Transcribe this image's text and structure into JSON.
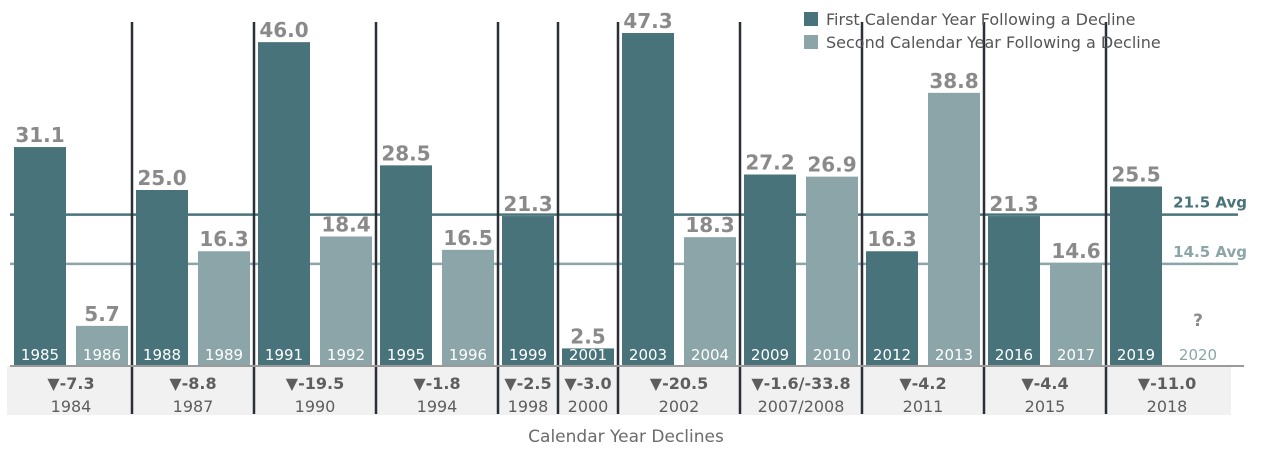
{
  "chart_data": {
    "type": "bar",
    "xlabel": "Calendar Year Declines",
    "ylim": [
      0,
      50
    ],
    "series": [
      {
        "name": "First Calendar Year Following a Decline",
        "color": "#48737a"
      },
      {
        "name": "Second Calendar Year Following a Decline",
        "color": "#8ba5a8"
      }
    ],
    "groups": [
      {
        "decline_year": "1984",
        "decline_value": "▼-7.3",
        "bars": [
          {
            "label": "1985",
            "value": 31.1,
            "series": 0,
            "value_text": "31.1"
          },
          {
            "label": "1986",
            "value": 5.7,
            "series": 1,
            "value_text": "5.7"
          }
        ]
      },
      {
        "decline_year": "1987",
        "decline_value": "▼-8.8",
        "bars": [
          {
            "label": "1988",
            "value": 25.0,
            "series": 0,
            "value_text": "25.0"
          },
          {
            "label": "1989",
            "value": 16.3,
            "series": 1,
            "value_text": "16.3"
          }
        ]
      },
      {
        "decline_year": "1990",
        "decline_value": "▼-19.5",
        "bars": [
          {
            "label": "1991",
            "value": 46.0,
            "series": 0,
            "value_text": "46.0"
          },
          {
            "label": "1992",
            "value": 18.4,
            "series": 1,
            "value_text": "18.4"
          }
        ]
      },
      {
        "decline_year": "1994",
        "decline_value": "▼-1.8",
        "bars": [
          {
            "label": "1995",
            "value": 28.5,
            "series": 0,
            "value_text": "28.5"
          },
          {
            "label": "1996",
            "value": 16.5,
            "series": 1,
            "value_text": "16.5"
          }
        ]
      },
      {
        "decline_year": "1998",
        "decline_value": "▼-2.5",
        "bars": [
          {
            "label": "1999",
            "value": 21.3,
            "series": 0,
            "value_text": "21.3"
          }
        ]
      },
      {
        "decline_year": "2000",
        "decline_value": "▼-3.0",
        "bars": [
          {
            "label": "2001",
            "value": 2.5,
            "series": 0,
            "value_text": "2.5"
          }
        ]
      },
      {
        "decline_year": "2002",
        "decline_value": "▼-20.5",
        "bars": [
          {
            "label": "2003",
            "value": 47.3,
            "series": 0,
            "value_text": "47.3"
          },
          {
            "label": "2004",
            "value": 18.3,
            "series": 1,
            "value_text": "18.3"
          }
        ]
      },
      {
        "decline_year": "2007/2008",
        "decline_value": "▼-1.6/-33.8",
        "bars": [
          {
            "label": "2009",
            "value": 27.2,
            "series": 0,
            "value_text": "27.2"
          },
          {
            "label": "2010",
            "value": 26.9,
            "series": 1,
            "value_text": "26.9"
          }
        ]
      },
      {
        "decline_year": "2011",
        "decline_value": "▼-4.2",
        "bars": [
          {
            "label": "2012",
            "value": 16.3,
            "series": 0,
            "value_text": "16.3"
          },
          {
            "label": "2013",
            "value": 38.8,
            "series": 1,
            "value_text": "38.8"
          }
        ]
      },
      {
        "decline_year": "2015",
        "decline_value": "▼-4.4",
        "bars": [
          {
            "label": "2016",
            "value": 21.3,
            "series": 0,
            "value_text": "21.3"
          },
          {
            "label": "2017",
            "value": 14.6,
            "series": 1,
            "value_text": "14.6"
          }
        ]
      },
      {
        "decline_year": "2018",
        "decline_value": "▼-11.0",
        "bars": [
          {
            "label": "2019",
            "value": 25.5,
            "series": 0,
            "value_text": "25.5"
          },
          {
            "label": "2020",
            "value": null,
            "series": 1,
            "value_text": "?"
          }
        ]
      }
    ],
    "reference_lines": [
      {
        "value": 21.5,
        "label": "21.5 Avg",
        "series": 0
      },
      {
        "value": 14.5,
        "label": "14.5 Avg",
        "series": 1
      }
    ],
    "legend_position": "top-right",
    "grid": false
  }
}
